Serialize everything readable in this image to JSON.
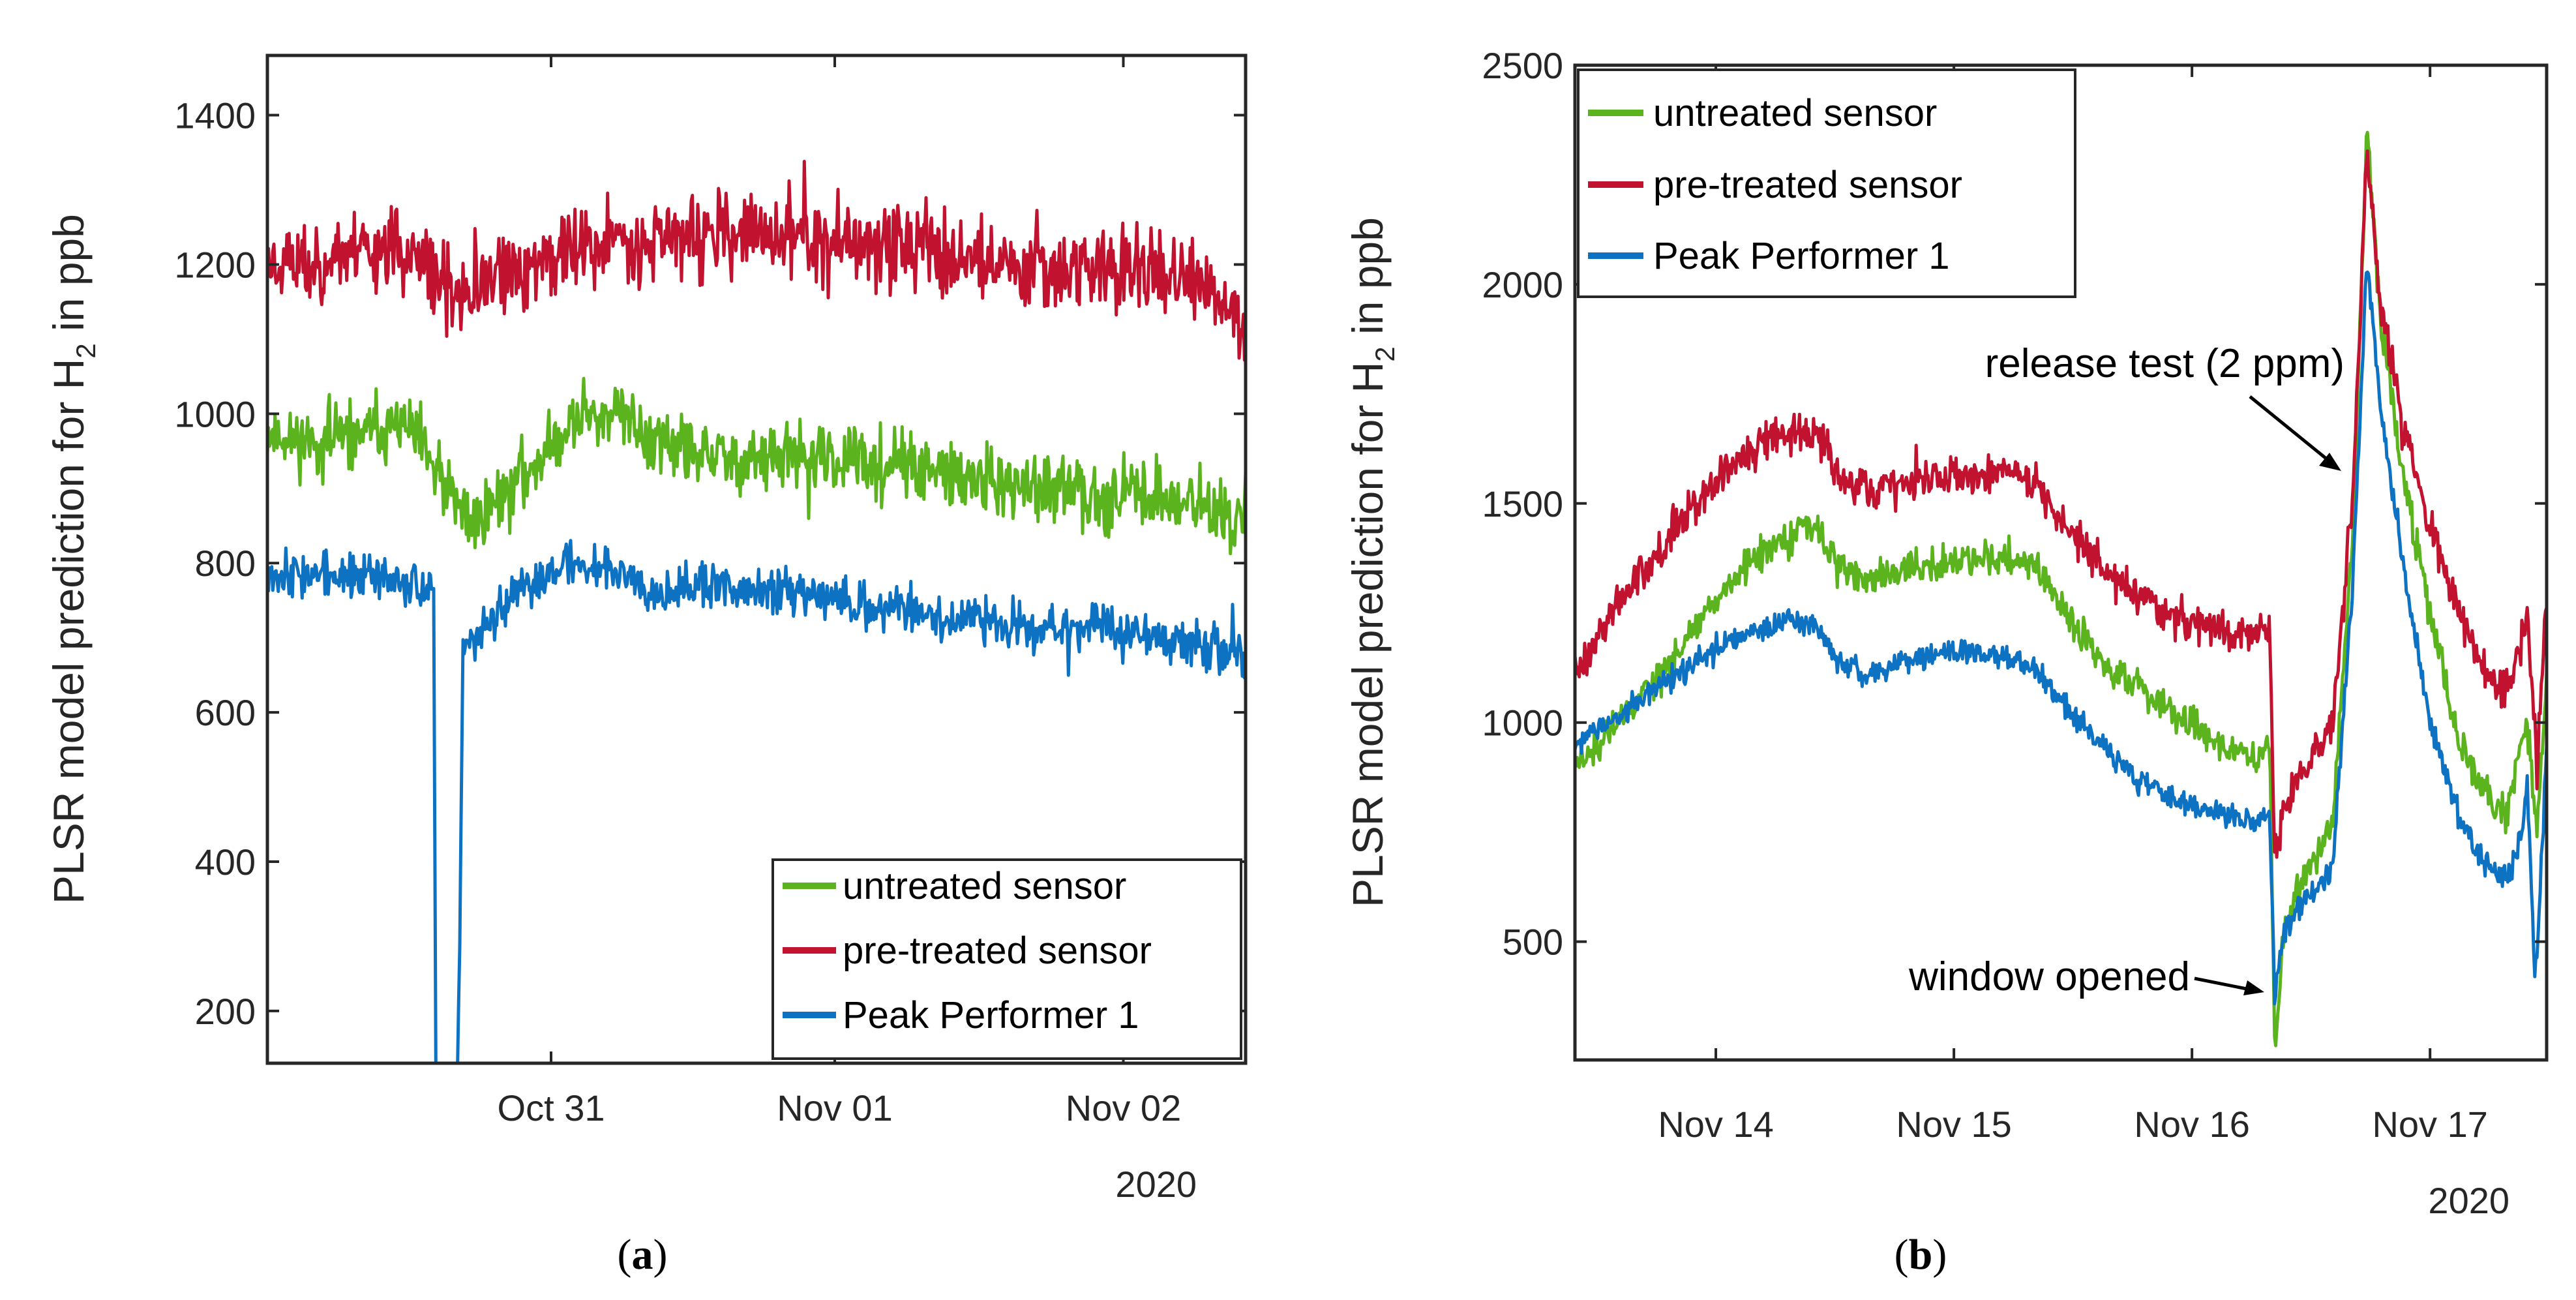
{
  "chart_data": [
    {
      "panel": "a",
      "type": "line",
      "caption": "a",
      "ylabel": "PLSR model prediction for H",
      "ylabel_sub": "2",
      "ylabel_tail": " in ppb",
      "ylim": [
        130,
        1480
      ],
      "yticks": [
        200,
        400,
        600,
        800,
        1000,
        1200,
        1400
      ],
      "xlim": [
        0,
        100
      ],
      "xticks": [
        {
          "value": 29,
          "label": "Oct 31"
        },
        {
          "value": 58,
          "label": "Nov 01"
        },
        {
          "value": 87.5,
          "label": "Nov 02"
        }
      ],
      "year_label": "2020",
      "legend": {
        "position": "bottom-right"
      },
      "series": [
        {
          "name": "untreated sensor",
          "color": "#5bb31d",
          "noise": 32,
          "seed": 11,
          "points": [
            [
              0,
              975
            ],
            [
              5,
              960
            ],
            [
              10,
              975
            ],
            [
              14,
              985
            ],
            [
              16,
              950
            ],
            [
              17.5,
              915
            ],
            [
              19,
              880
            ],
            [
              21,
              855
            ],
            [
              23,
              880
            ],
            [
              25,
              900
            ],
            [
              27,
              930
            ],
            [
              29,
              955
            ],
            [
              31,
              985
            ],
            [
              33,
              1005
            ],
            [
              35,
              1000
            ],
            [
              37,
              990
            ],
            [
              39,
              970
            ],
            [
              42,
              950
            ],
            [
              46,
              940
            ],
            [
              50,
              940
            ],
            [
              55,
              940
            ],
            [
              60,
              935
            ],
            [
              65,
              930
            ],
            [
              70,
              915
            ],
            [
              75,
              905
            ],
            [
              80,
              895
            ],
            [
              85,
              895
            ],
            [
              90,
              890
            ],
            [
              95,
              880
            ],
            [
              98,
              860
            ],
            [
              100,
              860
            ]
          ]
        },
        {
          "name": "pre-treated sensor",
          "color": "#c1122f",
          "noise": 40,
          "seed": 23,
          "points": [
            [
              0,
              1205
            ],
            [
              5,
              1200
            ],
            [
              10,
              1225
            ],
            [
              14,
              1220
            ],
            [
              17,
              1180
            ],
            [
              19,
              1160
            ],
            [
              21,
              1155
            ],
            [
              23,
              1175
            ],
            [
              26,
              1195
            ],
            [
              30,
              1215
            ],
            [
              35,
              1230
            ],
            [
              40,
              1240
            ],
            [
              45,
              1235
            ],
            [
              50,
              1240
            ],
            [
              55,
              1235
            ],
            [
              60,
              1225
            ],
            [
              65,
              1230
            ],
            [
              70,
              1215
            ],
            [
              75,
              1200
            ],
            [
              80,
              1200
            ],
            [
              85,
              1195
            ],
            [
              90,
              1195
            ],
            [
              95,
              1170
            ],
            [
              98,
              1140
            ],
            [
              100,
              1110
            ]
          ]
        },
        {
          "name": "Peak Performer 1",
          "color": "#0e72c3",
          "noise": 22,
          "seed": 37,
          "points": [
            [
              0,
              790
            ],
            [
              5,
              785
            ],
            [
              10,
              780
            ],
            [
              14,
              780
            ],
            [
              16,
              770
            ],
            [
              17,
              760
            ],
            [
              17.2,
              130
            ],
            [
              17.6,
              130
            ],
            [
              18.6,
              130
            ],
            [
              19,
              130
            ],
            [
              19.5,
              130
            ],
            [
              20,
              700
            ],
            [
              22,
              705
            ],
            [
              24,
              740
            ],
            [
              27,
              770
            ],
            [
              30,
              800
            ],
            [
              35,
              795
            ],
            [
              40,
              765
            ],
            [
              45,
              770
            ],
            [
              50,
              760
            ],
            [
              55,
              765
            ],
            [
              60,
              745
            ],
            [
              65,
              740
            ],
            [
              70,
              725
            ],
            [
              75,
              720
            ],
            [
              80,
              715
            ],
            [
              85,
              715
            ],
            [
              90,
              700
            ],
            [
              95,
              690
            ],
            [
              98,
              680
            ],
            [
              100,
              670
            ]
          ],
          "drops": [
            [
              17.1,
              130
            ],
            [
              20.1,
              130
            ]
          ]
        }
      ]
    },
    {
      "panel": "b",
      "type": "line",
      "caption": "b",
      "ylabel": "PLSR model prediction for H",
      "ylabel_sub": "2",
      "ylabel_tail": " in ppb",
      "ylim": [
        230,
        2500
      ],
      "yticks": [
        500,
        1000,
        1500,
        2000,
        2500
      ],
      "xlim": [
        0,
        100
      ],
      "xticks": [
        {
          "value": 14.5,
          "label": "Nov 14"
        },
        {
          "value": 39,
          "label": "Nov 15"
        },
        {
          "value": 63.5,
          "label": "Nov 16"
        },
        {
          "value": 88,
          "label": "Nov 17"
        }
      ],
      "year_label": "2020",
      "legend": {
        "position": "top-left"
      },
      "annotations": [
        {
          "text": "release test (2 ppm)",
          "x": 80,
          "y": 1600
        },
        {
          "text": "window opened",
          "x": 72,
          "y": 400
        }
      ],
      "series": [
        {
          "name": "untreated sensor",
          "color": "#5bb31d",
          "noise": 28,
          "seed": 51,
          "points": [
            [
              0,
              900
            ],
            [
              3,
              960
            ],
            [
              6,
              1040
            ],
            [
              10,
              1140
            ],
            [
              14,
              1270
            ],
            [
              18,
              1360
            ],
            [
              22,
              1420
            ],
            [
              25,
              1450
            ],
            [
              27,
              1360
            ],
            [
              30,
              1330
            ],
            [
              35,
              1350
            ],
            [
              40,
              1370
            ],
            [
              44,
              1380
            ],
            [
              47,
              1360
            ],
            [
              49,
              1300
            ],
            [
              52,
              1200
            ],
            [
              55,
              1120
            ],
            [
              58,
              1080
            ],
            [
              62,
              1010
            ],
            [
              66,
              960
            ],
            [
              70,
              920
            ],
            [
              71.5,
              960
            ],
            [
              72,
              250
            ],
            [
              73,
              520
            ],
            [
              75,
              650
            ],
            [
              77,
              720
            ],
            [
              78,
              800
            ],
            [
              80,
              1400
            ],
            [
              81.5,
              2350
            ],
            [
              83,
              1900
            ],
            [
              85,
              1600
            ],
            [
              88,
              1250
            ],
            [
              91,
              950
            ],
            [
              94,
              820
            ],
            [
              96,
              790
            ],
            [
              97,
              900
            ],
            [
              98,
              1000
            ],
            [
              99,
              760
            ],
            [
              100,
              1100
            ]
          ]
        },
        {
          "name": "pre-treated sensor",
          "color": "#c1122f",
          "noise": 32,
          "seed": 63,
          "points": [
            [
              0,
              1120
            ],
            [
              3,
              1220
            ],
            [
              6,
              1320
            ],
            [
              10,
              1440
            ],
            [
              14,
              1540
            ],
            [
              18,
              1620
            ],
            [
              22,
              1660
            ],
            [
              25,
              1670
            ],
            [
              27,
              1560
            ],
            [
              30,
              1530
            ],
            [
              35,
              1550
            ],
            [
              40,
              1570
            ],
            [
              44,
              1580
            ],
            [
              47,
              1560
            ],
            [
              49,
              1490
            ],
            [
              52,
              1410
            ],
            [
              55,
              1340
            ],
            [
              58,
              1290
            ],
            [
              62,
              1240
            ],
            [
              66,
              1210
            ],
            [
              70,
              1200
            ],
            [
              71.5,
              1210
            ],
            [
              72,
              700
            ],
            [
              73,
              800
            ],
            [
              75,
              900
            ],
            [
              77,
              950
            ],
            [
              78,
              1000
            ],
            [
              80,
              1500
            ],
            [
              81.5,
              2300
            ],
            [
              83,
              1950
            ],
            [
              85,
              1700
            ],
            [
              88,
              1450
            ],
            [
              91,
              1250
            ],
            [
              94,
              1100
            ],
            [
              96,
              1080
            ],
            [
              97,
              1150
            ],
            [
              98,
              1250
            ],
            [
              99,
              900
            ],
            [
              100,
              1300
            ]
          ]
        },
        {
          "name": "Peak Performer 1",
          "color": "#0e72c3",
          "noise": 20,
          "seed": 77,
          "points": [
            [
              0,
              950
            ],
            [
              3,
              990
            ],
            [
              6,
              1040
            ],
            [
              10,
              1100
            ],
            [
              14,
              1160
            ],
            [
              18,
              1200
            ],
            [
              22,
              1230
            ],
            [
              25,
              1220
            ],
            [
              27,
              1140
            ],
            [
              30,
              1110
            ],
            [
              35,
              1150
            ],
            [
              40,
              1160
            ],
            [
              44,
              1150
            ],
            [
              47,
              1130
            ],
            [
              49,
              1080
            ],
            [
              52,
              1000
            ],
            [
              55,
              930
            ],
            [
              58,
              870
            ],
            [
              62,
              820
            ],
            [
              66,
              790
            ],
            [
              70,
              770
            ],
            [
              71.5,
              800
            ],
            [
              72,
              380
            ],
            [
              73,
              520
            ],
            [
              75,
              600
            ],
            [
              77,
              640
            ],
            [
              78,
              680
            ],
            [
              80,
              1300
            ],
            [
              81.5,
              2060
            ],
            [
              83,
              1700
            ],
            [
              85,
              1400
            ],
            [
              88,
              1000
            ],
            [
              91,
              780
            ],
            [
              94,
              670
            ],
            [
              96,
              640
            ],
            [
              97,
              700
            ],
            [
              98,
              850
            ],
            [
              98.8,
              420
            ],
            [
              99.3,
              600
            ],
            [
              100,
              950
            ]
          ]
        }
      ]
    }
  ]
}
